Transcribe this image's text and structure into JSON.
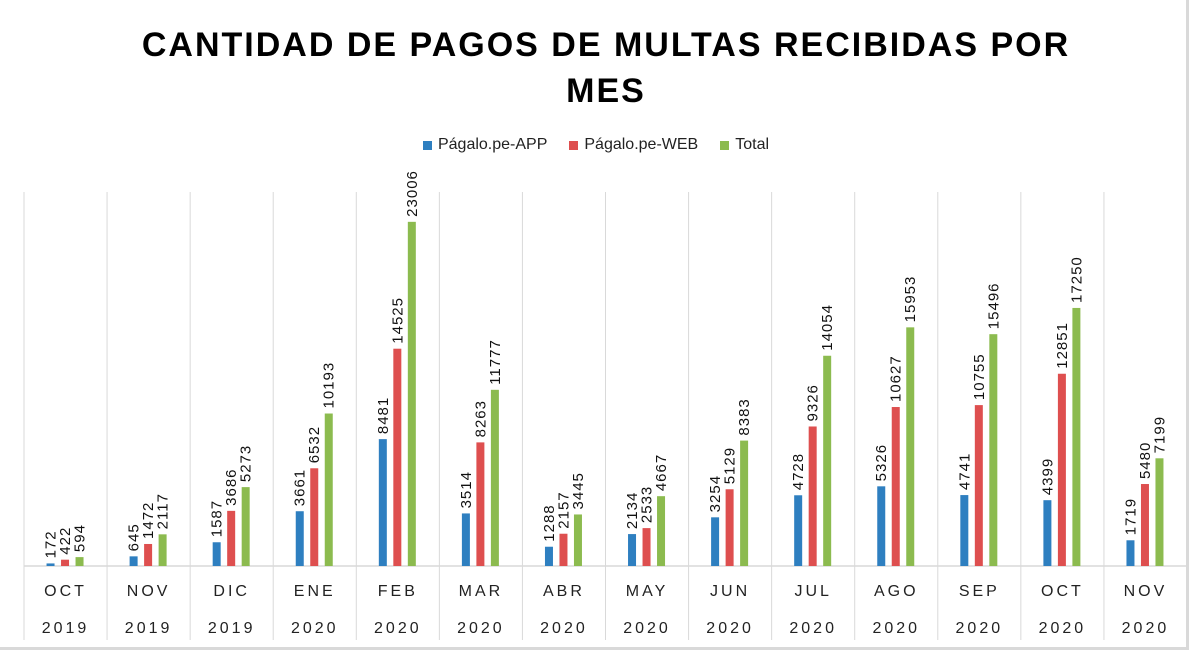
{
  "chart_data": {
    "type": "bar",
    "title": "CANTIDAD DE PAGOS DE MULTAS RECIBIDAS POR MES",
    "categories": [
      [
        "OCT",
        "2019"
      ],
      [
        "NOV",
        "2019"
      ],
      [
        "DIC",
        "2019"
      ],
      [
        "ENE",
        "2020"
      ],
      [
        "FEB",
        "2020"
      ],
      [
        "MAR",
        "2020"
      ],
      [
        "ABR",
        "2020"
      ],
      [
        "MAY",
        "2020"
      ],
      [
        "JUN",
        "2020"
      ],
      [
        "JUL",
        "2020"
      ],
      [
        "AGO",
        "2020"
      ],
      [
        "SEP",
        "2020"
      ],
      [
        "OCT",
        "2020"
      ],
      [
        "NOV",
        "2020"
      ]
    ],
    "series": [
      {
        "name": "Págalo.pe-APP",
        "color": "#2e7fc0",
        "values": [
          172,
          645,
          1587,
          3661,
          8481,
          3514,
          1288,
          2134,
          3254,
          4728,
          5326,
          4741,
          4399,
          1719
        ]
      },
      {
        "name": "Págalo.pe-WEB",
        "color": "#de4f4f",
        "values": [
          422,
          1472,
          3686,
          6532,
          14525,
          8263,
          2157,
          2533,
          5129,
          9326,
          10627,
          10755,
          12851,
          5480
        ]
      },
      {
        "name": "Total",
        "color": "#8cbb4f",
        "values": [
          594,
          2117,
          5273,
          10193,
          23006,
          11777,
          3445,
          4667,
          8383,
          14054,
          15953,
          15496,
          17250,
          7199
        ]
      }
    ],
    "ylim": [
      0,
      25000
    ],
    "grid": "vertical category separators",
    "legend_position": "top",
    "data_labels": true
  }
}
